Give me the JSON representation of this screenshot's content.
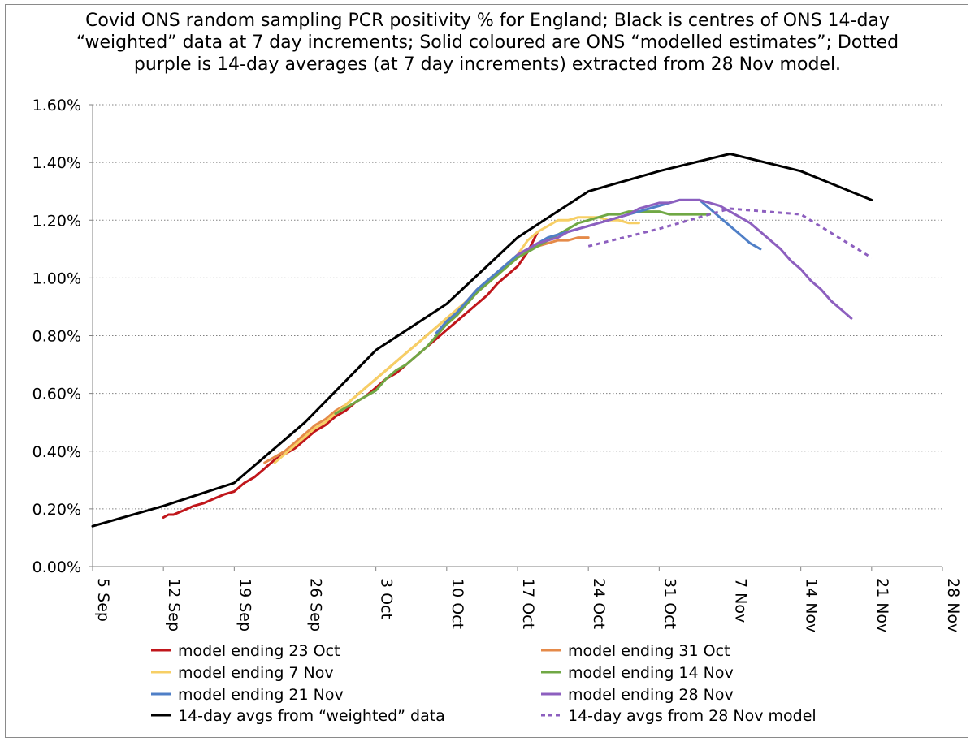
{
  "title_lines": [
    "Covid ONS random sampling PCR positivity % for England; Black is centres of ONS 14-day",
    "“weighted” data at 7 day increments; Solid coloured are ONS “modelled estimates”; Dotted",
    "purple is 14-day averages (at 7 day increments) extracted from 28 Nov model."
  ],
  "chart_data": {
    "type": "line",
    "title": "Covid ONS random sampling PCR positivity % for England; Black is centres of ONS 14-day “weighted” data at 7 day increments; Solid coloured are ONS “modelled estimates”; Dotted purple is 14-day averages (at 7 day increments) extracted from 28 Nov model.",
    "x_unit": "days from 5 Sep",
    "xlim": [
      0,
      84
    ],
    "ylim": [
      0,
      1.6
    ],
    "y_ticks": [
      0,
      0.2,
      0.4,
      0.6,
      0.8,
      1.0,
      1.2,
      1.4,
      1.6
    ],
    "y_tick_labels": [
      "0.00%",
      "0.20%",
      "0.40%",
      "0.60%",
      "0.80%",
      "1.00%",
      "1.20%",
      "1.40%",
      "1.60%"
    ],
    "x_ticks": [
      0,
      7,
      14,
      21,
      28,
      35,
      42,
      49,
      56,
      63,
      70,
      77,
      84
    ],
    "x_tick_labels": [
      "5 Sep",
      "12 Sep",
      "19 Sep",
      "26 Sep",
      "3 Oct",
      "10 Oct",
      "17 Oct",
      "24 Oct",
      "31 Oct",
      "7 Nov",
      "14 Nov",
      "21 Nov",
      "28 Nov"
    ],
    "grid": "horizontal dotted",
    "legend_position": "bottom",
    "series": [
      {
        "name": "model ending 23 Oct",
        "color": "#c0161b",
        "style": "solid",
        "points": [
          [
            7,
            0.17
          ],
          [
            7.5,
            0.18
          ],
          [
            8,
            0.18
          ],
          [
            9,
            0.195
          ],
          [
            10,
            0.21
          ],
          [
            11,
            0.22
          ],
          [
            12,
            0.235
          ],
          [
            13,
            0.25
          ],
          [
            14,
            0.26
          ],
          [
            15,
            0.29
          ],
          [
            16,
            0.31
          ],
          [
            17,
            0.34
          ],
          [
            18,
            0.37
          ],
          [
            19,
            0.39
          ],
          [
            20,
            0.41
          ],
          [
            21,
            0.44
          ],
          [
            22,
            0.47
          ],
          [
            23,
            0.49
          ],
          [
            24,
            0.52
          ],
          [
            25,
            0.54
          ],
          [
            26,
            0.57
          ],
          [
            27,
            0.59
          ],
          [
            28,
            0.62
          ],
          [
            29,
            0.65
          ],
          [
            30,
            0.67
          ],
          [
            31,
            0.7
          ],
          [
            32,
            0.73
          ],
          [
            33,
            0.76
          ],
          [
            34,
            0.79
          ],
          [
            35,
            0.82
          ],
          [
            36,
            0.85
          ],
          [
            37,
            0.88
          ],
          [
            38,
            0.91
          ],
          [
            39,
            0.94
          ],
          [
            40,
            0.98
          ],
          [
            41,
            1.01
          ],
          [
            42,
            1.04
          ],
          [
            43,
            1.09
          ],
          [
            44,
            1.16
          ]
        ]
      },
      {
        "name": "model ending 31 Oct",
        "color": "#e58a49",
        "style": "solid",
        "points": [
          [
            17,
            0.36
          ],
          [
            18,
            0.38
          ],
          [
            19,
            0.4
          ],
          [
            20,
            0.43
          ],
          [
            21,
            0.46
          ],
          [
            22,
            0.49
          ],
          [
            23,
            0.51
          ],
          [
            24,
            0.54
          ],
          [
            25,
            0.56
          ],
          [
            26,
            0.59
          ],
          [
            27,
            0.62
          ],
          [
            28,
            0.65
          ],
          [
            29,
            0.68
          ],
          [
            30,
            0.71
          ],
          [
            31,
            0.74
          ],
          [
            32,
            0.77
          ],
          [
            33,
            0.8
          ],
          [
            34,
            0.83
          ],
          [
            35,
            0.86
          ],
          [
            36,
            0.89
          ],
          [
            37,
            0.92
          ],
          [
            38,
            0.96
          ],
          [
            39,
            0.99
          ],
          [
            40,
            1.02
          ],
          [
            41,
            1.05
          ],
          [
            42,
            1.08
          ],
          [
            43,
            1.1
          ],
          [
            44,
            1.11
          ],
          [
            45,
            1.12
          ],
          [
            46,
            1.13
          ],
          [
            47,
            1.13
          ],
          [
            48,
            1.14
          ],
          [
            49,
            1.14
          ]
        ]
      },
      {
        "name": "model ending 7 Nov",
        "color": "#f7cf65",
        "style": "solid",
        "points": [
          [
            18,
            0.36
          ],
          [
            19,
            0.39
          ],
          [
            20,
            0.42
          ],
          [
            21,
            0.45
          ],
          [
            22,
            0.48
          ],
          [
            23,
            0.5
          ],
          [
            24,
            0.53
          ],
          [
            25,
            0.56
          ],
          [
            26,
            0.59
          ],
          [
            27,
            0.62
          ],
          [
            28,
            0.65
          ],
          [
            29,
            0.68
          ],
          [
            30,
            0.71
          ],
          [
            31,
            0.74
          ],
          [
            32,
            0.77
          ],
          [
            33,
            0.8
          ],
          [
            34,
            0.83
          ],
          [
            35,
            0.86
          ],
          [
            36,
            0.89
          ],
          [
            37,
            0.92
          ],
          [
            38,
            0.95
          ],
          [
            39,
            0.98
          ],
          [
            40,
            1.01
          ],
          [
            41,
            1.04
          ],
          [
            42,
            1.08
          ],
          [
            43,
            1.13
          ],
          [
            44,
            1.16
          ],
          [
            45,
            1.18
          ],
          [
            46,
            1.2
          ],
          [
            47,
            1.2
          ],
          [
            48,
            1.21
          ],
          [
            49,
            1.21
          ],
          [
            50,
            1.21
          ],
          [
            51,
            1.2
          ],
          [
            52,
            1.2
          ],
          [
            53,
            1.19
          ],
          [
            54,
            1.19
          ]
        ]
      },
      {
        "name": "model ending 14 Nov",
        "color": "#70a845",
        "style": "solid",
        "points": [
          [
            24,
            0.53
          ],
          [
            25,
            0.55
          ],
          [
            26,
            0.57
          ],
          [
            27,
            0.59
          ],
          [
            28,
            0.61
          ],
          [
            29,
            0.65
          ],
          [
            30,
            0.68
          ],
          [
            31,
            0.7
          ],
          [
            32,
            0.73
          ],
          [
            33,
            0.76
          ],
          [
            34,
            0.8
          ],
          [
            35,
            0.84
          ],
          [
            36,
            0.87
          ],
          [
            37,
            0.91
          ],
          [
            38,
            0.95
          ],
          [
            39,
            0.98
          ],
          [
            40,
            1.01
          ],
          [
            41,
            1.04
          ],
          [
            42,
            1.07
          ],
          [
            43,
            1.09
          ],
          [
            44,
            1.11
          ],
          [
            45,
            1.13
          ],
          [
            46,
            1.15
          ],
          [
            47,
            1.17
          ],
          [
            48,
            1.19
          ],
          [
            49,
            1.2
          ],
          [
            50,
            1.21
          ],
          [
            51,
            1.22
          ],
          [
            52,
            1.22
          ],
          [
            53,
            1.23
          ],
          [
            54,
            1.23
          ],
          [
            55,
            1.23
          ],
          [
            56,
            1.23
          ],
          [
            57,
            1.22
          ],
          [
            58,
            1.22
          ],
          [
            59,
            1.22
          ],
          [
            60,
            1.22
          ],
          [
            61,
            1.22
          ]
        ]
      },
      {
        "name": "model ending 21 Nov",
        "color": "#4f7fc7",
        "style": "solid",
        "points": [
          [
            34,
            0.81
          ],
          [
            35,
            0.85
          ],
          [
            36,
            0.88
          ],
          [
            37,
            0.92
          ],
          [
            38,
            0.96
          ],
          [
            39,
            0.99
          ],
          [
            40,
            1.02
          ],
          [
            41,
            1.05
          ],
          [
            42,
            1.08
          ],
          [
            43,
            1.1
          ],
          [
            44,
            1.12
          ],
          [
            45,
            1.14
          ],
          [
            46,
            1.15
          ],
          [
            47,
            1.16
          ],
          [
            48,
            1.17
          ],
          [
            49,
            1.18
          ],
          [
            50,
            1.19
          ],
          [
            51,
            1.2
          ],
          [
            52,
            1.21
          ],
          [
            53,
            1.22
          ],
          [
            54,
            1.23
          ],
          [
            55,
            1.24
          ],
          [
            56,
            1.25
          ],
          [
            57,
            1.26
          ],
          [
            58,
            1.27
          ],
          [
            59,
            1.27
          ],
          [
            60,
            1.27
          ],
          [
            61,
            1.24
          ],
          [
            62,
            1.21
          ],
          [
            63,
            1.18
          ],
          [
            64,
            1.15
          ],
          [
            65,
            1.12
          ],
          [
            66,
            1.1
          ]
        ]
      },
      {
        "name": "model ending 28 Nov",
        "color": "#8d5fbf",
        "style": "solid",
        "points": [
          [
            42,
            1.08
          ],
          [
            43,
            1.1
          ],
          [
            44,
            1.12
          ],
          [
            45,
            1.13
          ],
          [
            46,
            1.14
          ],
          [
            47,
            1.16
          ],
          [
            48,
            1.17
          ],
          [
            49,
            1.18
          ],
          [
            50,
            1.19
          ],
          [
            51,
            1.2
          ],
          [
            52,
            1.21
          ],
          [
            53,
            1.22
          ],
          [
            54,
            1.24
          ],
          [
            55,
            1.25
          ],
          [
            56,
            1.26
          ],
          [
            57,
            1.26
          ],
          [
            58,
            1.27
          ],
          [
            59,
            1.27
          ],
          [
            60,
            1.27
          ],
          [
            61,
            1.26
          ],
          [
            62,
            1.25
          ],
          [
            63,
            1.23
          ],
          [
            64,
            1.21
          ],
          [
            65,
            1.19
          ],
          [
            66,
            1.16
          ],
          [
            67,
            1.13
          ],
          [
            68,
            1.1
          ],
          [
            69,
            1.06
          ],
          [
            70,
            1.03
          ],
          [
            71,
            0.99
          ],
          [
            72,
            0.96
          ],
          [
            73,
            0.92
          ],
          [
            74,
            0.89
          ],
          [
            75,
            0.86
          ]
        ]
      },
      {
        "name": "14-day avgs from “weighted” data",
        "color": "#000000",
        "style": "solid",
        "points": [
          [
            0,
            0.14
          ],
          [
            7,
            0.21
          ],
          [
            14,
            0.29
          ],
          [
            21,
            0.5
          ],
          [
            28,
            0.75
          ],
          [
            35,
            0.91
          ],
          [
            42,
            1.14
          ],
          [
            49,
            1.3
          ],
          [
            56,
            1.37
          ],
          [
            63,
            1.43
          ],
          [
            70,
            1.37
          ],
          [
            77,
            1.27
          ]
        ]
      },
      {
        "name": "14-day avgs from 28 Nov model",
        "color": "#8d5fbf",
        "style": "dotted",
        "points": [
          [
            49,
            1.11
          ],
          [
            56,
            1.17
          ],
          [
            63,
            1.24
          ],
          [
            70,
            1.22
          ],
          [
            77,
            1.07
          ]
        ]
      }
    ]
  }
}
